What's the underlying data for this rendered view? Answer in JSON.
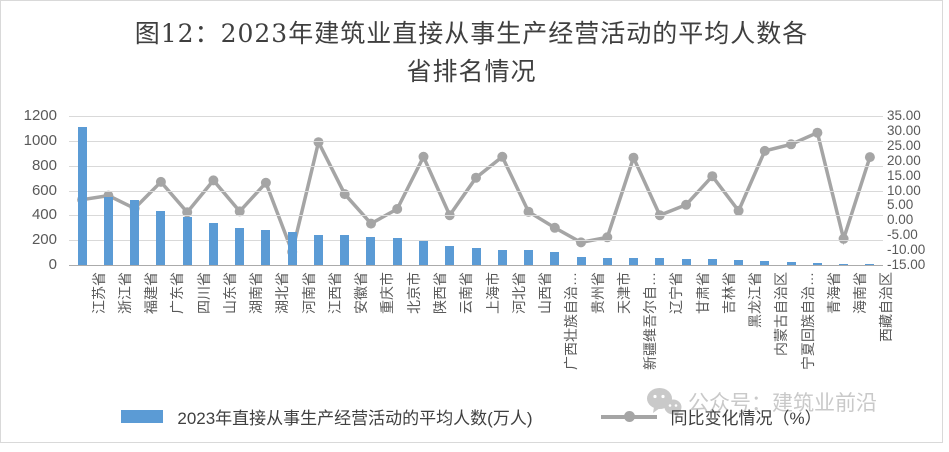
{
  "watermark": {
    "icon": "wechat-icon",
    "text": "公众号：建筑业前沿"
  },
  "chart_data": {
    "type": "bar",
    "combo": "bar+line",
    "title": "图12：2023年建筑业直接从事生产经营活动的平均人数各省排名情况",
    "title_line1": "图12：2023年建筑业直接从事生产经营活动的平均人数各",
    "title_line2": "省排名情况",
    "grid": true,
    "legend_position": "bottom",
    "categories": [
      "江苏省",
      "浙江省",
      "福建省",
      "广东省",
      "四川省",
      "山东省",
      "湖南省",
      "湖北省",
      "河南省",
      "江西省",
      "安徽省",
      "重庆市",
      "北京市",
      "陕西省",
      "云南省",
      "上海市",
      "河北省",
      "山西省",
      "广西壮族自治…",
      "贵州省",
      "天津市",
      "新疆维吾尔自…",
      "辽宁省",
      "甘肃省",
      "吉林省",
      "黑龙江省",
      "内蒙古自治区",
      "宁夏回族自治…",
      "青海省",
      "海南省",
      "西藏自治区"
    ],
    "series": [
      {
        "name": "2023年直接从事生产经营活动的平均人数(万人)",
        "type": "bar",
        "axis": "left",
        "color": "#5b9bd5",
        "values": [
          1110,
          550,
          525,
          435,
          390,
          340,
          295,
          280,
          265,
          245,
          240,
          225,
          215,
          195,
          155,
          135,
          122,
          118,
          107,
          62,
          59,
          58,
          55,
          48,
          45,
          40,
          32,
          22,
          15,
          10,
          4
        ]
      },
      {
        "name": "同比变化情况（%）",
        "type": "line",
        "axis": "right",
        "color": "#a5a5a5",
        "values": [
          6.9,
          8.3,
          4.0,
          12.9,
          2.7,
          13.4,
          3.0,
          12.6,
          -10.6,
          26.2,
          8.8,
          -1.1,
          3.8,
          21.3,
          1.7,
          14.3,
          21.3,
          2.9,
          -2.5,
          -7.4,
          -5.7,
          21.0,
          1.7,
          5.2,
          14.8,
          3.2,
          23.3,
          25.5,
          29.4,
          -6.2,
          21.2
        ]
      }
    ],
    "left_axis": {
      "min": 0,
      "max": 1200,
      "step": 200,
      "ticks": [
        "1200",
        "1000",
        "800",
        "600",
        "400",
        "200",
        "0"
      ]
    },
    "right_axis": {
      "min": -15,
      "max": 35,
      "step": 5,
      "ticks": [
        "35.00",
        "30.00",
        "25.00",
        "20.00",
        "15.00",
        "10.00",
        "5.00",
        "0.00",
        "-5.00",
        "-10.00",
        "-15.00"
      ]
    },
    "colors": {
      "bar": "#5b9bd5",
      "line": "#a5a5a5",
      "gridline": "#d9d9d9",
      "axis_text": "#595959",
      "title_text": "#3f3f3f",
      "watermark": "#c9c9c9"
    }
  }
}
